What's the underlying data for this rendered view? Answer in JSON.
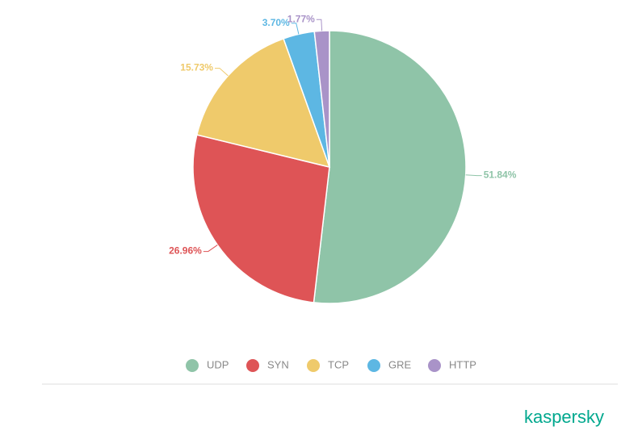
{
  "chart_data": {
    "type": "pie",
    "categories": [
      "UDP",
      "SYN",
      "TCP",
      "GRE",
      "HTTP"
    ],
    "values": [
      51.84,
      26.96,
      15.73,
      3.7,
      1.77
    ],
    "value_labels": [
      "51.84%",
      "26.96%",
      "15.73%",
      "3.70%",
      "1.77%"
    ],
    "colors": [
      "#8fc4a8",
      "#de5456",
      "#efca6b",
      "#5db7e3",
      "#a993c8"
    ],
    "legend": "bottom"
  },
  "brand": "kaspersky"
}
